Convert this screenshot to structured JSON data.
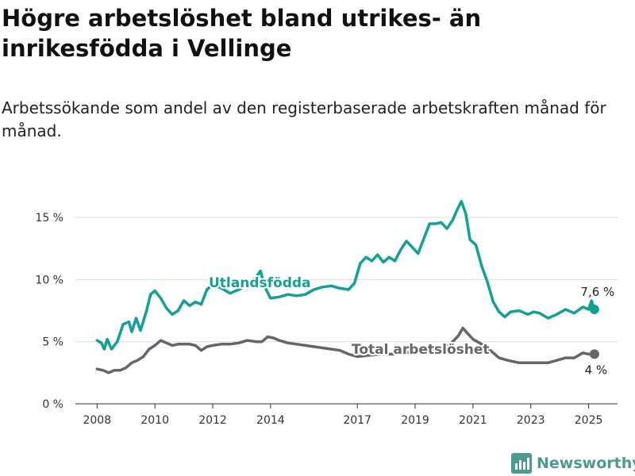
{
  "title": "Högre arbetslöshet bland utrikes- än inrikesfödda i Vellinge",
  "subtitle": "Arbetssökande som andel av den registerbaserade arbetskraften månad för månad.",
  "brand": {
    "name": "Newsworthy",
    "icon": "bar-chart-logo-icon"
  },
  "colors": {
    "utlandsfodda": "#14a093",
    "total": "#666666",
    "grid": "#dddddd",
    "brand": "#4d9a8e"
  },
  "chart_data": {
    "type": "line",
    "y_tick_labels": [
      "0 %",
      "5 %",
      "10 %",
      "15 %"
    ],
    "x_tick_labels": [
      "2008",
      "2010",
      "2012",
      "2014",
      "2017",
      "2019",
      "2021",
      "2023",
      "2025"
    ],
    "x_tick_values": [
      2008,
      2010,
      2012,
      2014,
      2017,
      2019,
      2021,
      2023,
      2025
    ],
    "xlim": [
      2007.25,
      2026.0
    ],
    "ylim": [
      0,
      17.5
    ],
    "grid": true,
    "legend": "inline labels on lines",
    "end_labels": {
      "utlandsfodda": "7,6 %",
      "total": "4 %"
    },
    "series": [
      {
        "key": "utlandsfodda",
        "name": "Utlandsfödda",
        "color": "#14a093",
        "x": [
          2008.0,
          2008.15,
          2008.25,
          2008.35,
          2008.5,
          2008.7,
          2008.9,
          2009.1,
          2009.2,
          2009.35,
          2009.5,
          2009.7,
          2009.85,
          2010.0,
          2010.2,
          2010.4,
          2010.6,
          2010.8,
          2011.0,
          2011.2,
          2011.4,
          2011.6,
          2011.8,
          2012.0,
          2012.3,
          2012.6,
          2012.9,
          2013.2,
          2013.5,
          2013.65,
          2013.8,
          2014.0,
          2014.3,
          2014.6,
          2014.9,
          2015.2,
          2015.5,
          2015.8,
          2016.1,
          2016.4,
          2016.7,
          2016.9,
          2017.1,
          2017.3,
          2017.5,
          2017.7,
          2017.9,
          2018.1,
          2018.3,
          2018.5,
          2018.7,
          2018.9,
          2019.1,
          2019.3,
          2019.5,
          2019.7,
          2019.9,
          2020.1,
          2020.3,
          2020.45,
          2020.6,
          2020.75,
          2020.9,
          2021.1,
          2021.3,
          2021.5,
          2021.7,
          2021.9,
          2022.1,
          2022.3,
          2022.6,
          2022.9,
          2023.1,
          2023.3,
          2023.6,
          2023.9,
          2024.2,
          2024.5,
          2024.8,
          2025.0,
          2025.1,
          2025.2
        ],
        "values": [
          5.1,
          4.9,
          4.4,
          5.2,
          4.4,
          5.0,
          6.4,
          6.6,
          5.8,
          6.9,
          5.9,
          7.4,
          8.8,
          9.1,
          8.5,
          7.7,
          7.2,
          7.5,
          8.3,
          7.9,
          8.2,
          8.0,
          9.2,
          9.6,
          9.3,
          8.9,
          9.2,
          9.6,
          10.2,
          10.7,
          9.4,
          8.5,
          8.6,
          8.8,
          8.7,
          8.8,
          9.2,
          9.4,
          9.5,
          9.3,
          9.2,
          9.7,
          11.3,
          11.8,
          11.5,
          12.0,
          11.4,
          11.8,
          11.5,
          12.4,
          13.1,
          12.6,
          12.1,
          13.3,
          14.5,
          14.5,
          14.6,
          14.1,
          14.8,
          15.6,
          16.3,
          15.3,
          13.2,
          12.8,
          11.1,
          9.8,
          8.2,
          7.4,
          7.0,
          7.4,
          7.5,
          7.2,
          7.4,
          7.3,
          6.9,
          7.2,
          7.6,
          7.3,
          7.8,
          7.6,
          8.3,
          7.6
        ]
      },
      {
        "key": "total",
        "name": "Total arbetslöshet",
        "color": "#666666",
        "x": [
          2008.0,
          2008.2,
          2008.4,
          2008.6,
          2008.8,
          2009.0,
          2009.2,
          2009.4,
          2009.6,
          2009.8,
          2010.0,
          2010.2,
          2010.4,
          2010.6,
          2010.8,
          2011.0,
          2011.2,
          2011.4,
          2011.6,
          2011.8,
          2012.0,
          2012.3,
          2012.6,
          2012.9,
          2013.2,
          2013.5,
          2013.7,
          2013.9,
          2014.1,
          2014.3,
          2014.6,
          2014.9,
          2015.2,
          2015.5,
          2015.8,
          2016.1,
          2016.4,
          2016.7,
          2017.0,
          2017.4,
          2017.8,
          2018.2,
          2018.6,
          2019.0,
          2019.4,
          2019.8,
          2020.1,
          2020.3,
          2020.5,
          2020.65,
          2020.8,
          2021.0,
          2021.3,
          2021.6,
          2021.9,
          2022.2,
          2022.6,
          2023.0,
          2023.3,
          2023.6,
          2023.9,
          2024.2,
          2024.5,
          2024.8,
          2025.0,
          2025.2
        ],
        "values": [
          2.8,
          2.7,
          2.5,
          2.7,
          2.7,
          2.9,
          3.3,
          3.5,
          3.8,
          4.4,
          4.7,
          5.1,
          4.9,
          4.7,
          4.8,
          4.8,
          4.8,
          4.7,
          4.3,
          4.6,
          4.7,
          4.8,
          4.8,
          4.9,
          5.1,
          5.0,
          5.0,
          5.4,
          5.3,
          5.1,
          4.9,
          4.8,
          4.7,
          4.6,
          4.5,
          4.4,
          4.3,
          4.0,
          3.8,
          3.9,
          4.0,
          4.0,
          4.1,
          4.2,
          4.3,
          4.4,
          4.6,
          5.0,
          5.5,
          6.1,
          5.7,
          5.2,
          4.8,
          4.3,
          3.7,
          3.5,
          3.3,
          3.3,
          3.3,
          3.3,
          3.5,
          3.7,
          3.7,
          4.1,
          4.0,
          4.0
        ]
      }
    ]
  }
}
